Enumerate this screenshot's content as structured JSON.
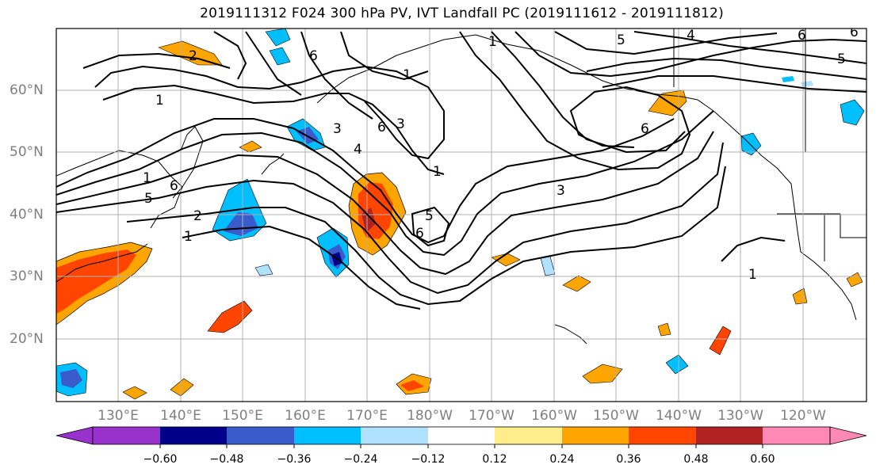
{
  "title": "2019111312 F024 300 hPa PV, IVT Landfall PC (2019111612 - 2019111812)",
  "map": {
    "lat_labels": [
      "60°N",
      "50°N",
      "40°N",
      "30°N",
      "20°N"
    ],
    "lon_labels": [
      "130°E",
      "140°E",
      "150°E",
      "160°E",
      "170°E",
      "180°W",
      "170°W",
      "160°W",
      "150°W",
      "140°W",
      "130°W",
      "120°W"
    ],
    "contour_labels": [
      "1",
      "2",
      "6",
      "1",
      "6",
      "5",
      "2",
      "1",
      "4",
      "3",
      "6",
      "1",
      "3",
      "5",
      "6",
      "1",
      "3",
      "6",
      "5",
      "4",
      "6",
      "6",
      "5",
      "1",
      "1"
    ]
  },
  "colorbar": {
    "tick_labels": [
      "−0.60",
      "−0.48",
      "−0.36",
      "−0.24",
      "−0.12",
      "0.12",
      "0.24",
      "0.36",
      "0.48",
      "0.60"
    ],
    "colors": [
      "#9932CC",
      "#00008B",
      "#3A5BCB",
      "#00BFFF",
      "#B0E2FF",
      "#FFFFFF",
      "#FFEC8B",
      "#FFA500",
      "#FF4500",
      "#B22222",
      "#FF88B4"
    ]
  }
}
